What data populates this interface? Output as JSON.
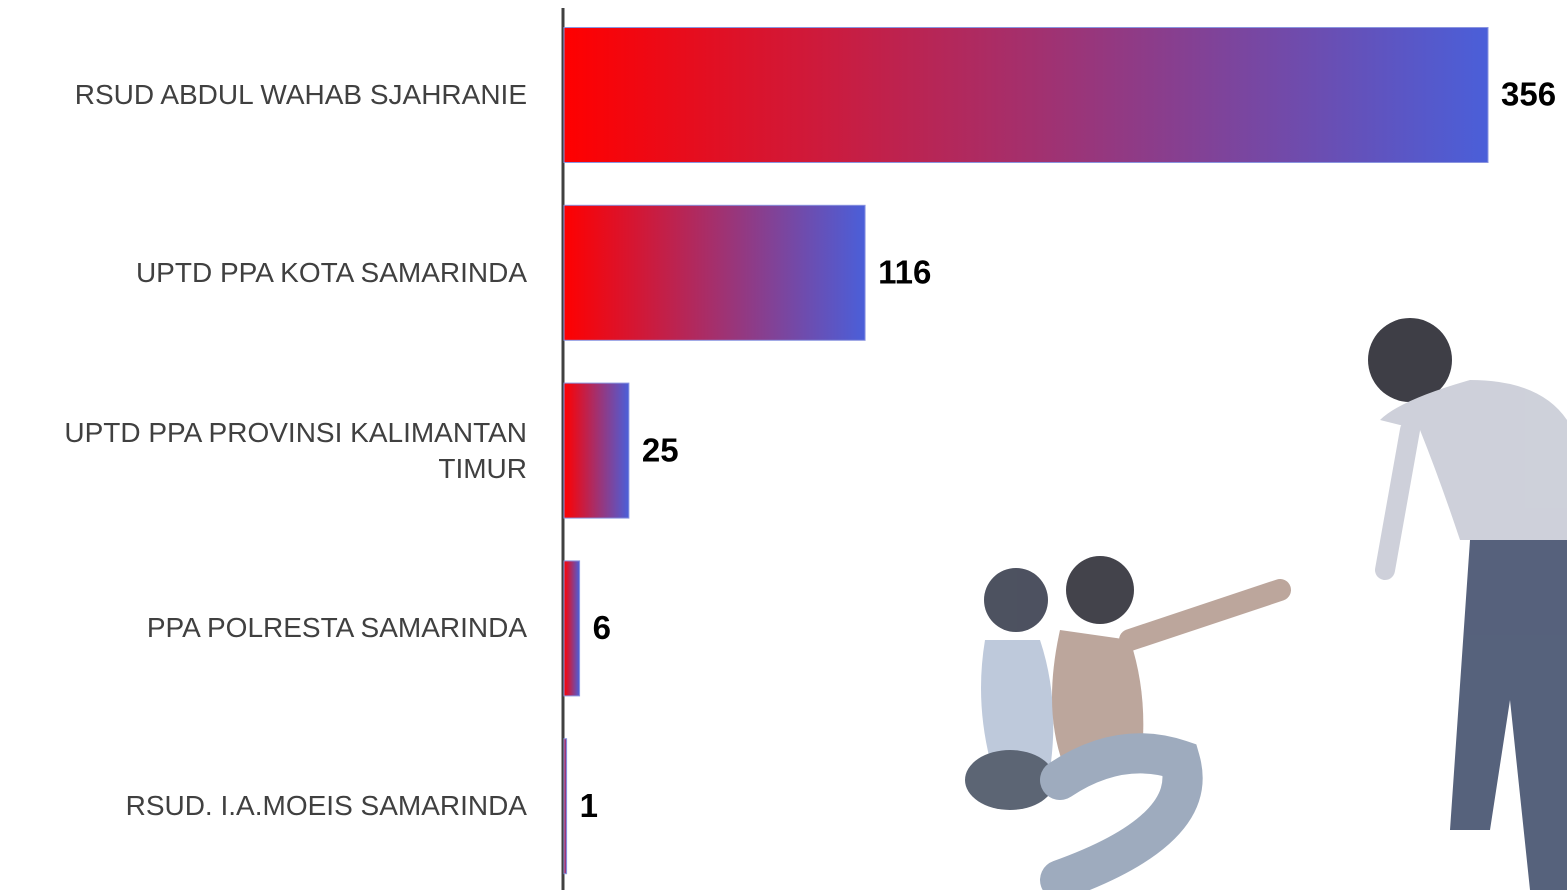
{
  "chart_data": {
    "type": "bar",
    "orientation": "horizontal",
    "categories": [
      "RSUD ABDUL WAHAB SJAHRANIE",
      "UPTD PPA KOTA SAMARINDA",
      "UPTD PPA PROVINSI KALIMANTAN TIMUR",
      "PPA POLRESTA SAMARINDA",
      "RSUD. I.A.MOEIS SAMARINDA"
    ],
    "values": [
      356,
      116,
      25,
      6,
      1
    ],
    "colors": [
      "#ff0000",
      "#4a5fd9"
    ]
  }
}
